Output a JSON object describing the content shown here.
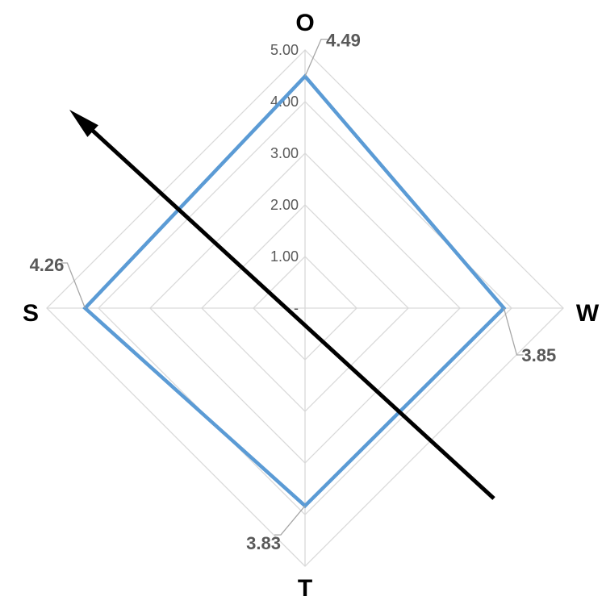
{
  "chart_data": {
    "type": "radar",
    "categories": [
      "O",
      "W",
      "T",
      "S"
    ],
    "series": [
      {
        "values": [
          4.49,
          3.85,
          3.83,
          4.26
        ],
        "color": "#5b9bd5"
      }
    ],
    "rlim": [
      0,
      5
    ],
    "tick_labels": [
      "-",
      "1.00",
      "2.00",
      "3.00",
      "4.00",
      "5.00"
    ],
    "data_labels": [
      "4.49",
      "3.85",
      "3.83",
      "4.26"
    ],
    "grid": true,
    "gridline_color": "#d9d9d9",
    "overlay": {
      "shape": "arrow",
      "direction": "up-left",
      "color": "#000000"
    }
  }
}
